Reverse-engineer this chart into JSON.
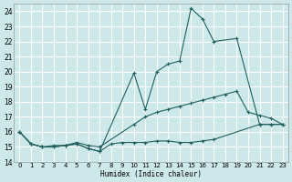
{
  "bg_color": "#cce8e8",
  "grid_color": "#ffffff",
  "line_color": "#206060",
  "xlabel": "Humidex (Indice chaleur)",
  "line1_x": [
    0,
    1,
    2,
    3,
    4,
    5,
    6,
    7,
    8,
    9,
    10,
    11,
    12,
    13,
    14,
    15,
    16,
    17,
    21,
    22,
    23
  ],
  "line1_y": [
    16,
    15.2,
    15.0,
    15.0,
    15.1,
    15.2,
    14.9,
    14.7,
    15.2,
    15.3,
    15.3,
    15.3,
    15.4,
    15.4,
    15.3,
    15.3,
    15.4,
    15.5,
    16.5,
    16.5,
    16.5
  ],
  "line2_x": [
    0,
    1,
    2,
    3,
    4,
    5,
    6,
    7,
    10,
    11,
    12,
    13,
    14,
    15,
    16,
    17,
    18,
    19,
    20,
    21,
    22,
    23
  ],
  "line2_y": [
    16,
    15.2,
    15.0,
    15.1,
    15.1,
    15.3,
    15.1,
    15.0,
    16.5,
    17.0,
    17.3,
    17.5,
    17.7,
    17.9,
    18.1,
    18.3,
    18.5,
    18.7,
    17.3,
    17.1,
    16.9,
    16.5
  ],
  "line3_x": [
    0,
    1,
    2,
    3,
    4,
    5,
    6,
    7,
    10,
    11,
    12,
    13,
    14,
    15,
    16,
    17,
    19,
    21,
    22,
    23
  ],
  "line3_y": [
    16,
    15.2,
    15.0,
    15.0,
    15.1,
    15.2,
    14.9,
    14.7,
    19.9,
    17.5,
    20.0,
    20.5,
    20.7,
    24.2,
    23.5,
    22.0,
    22.2,
    16.5,
    16.5,
    16.5
  ],
  "ylim": [
    14,
    24.5
  ],
  "xlim": [
    -0.5,
    23.5
  ],
  "yticks": [
    14,
    15,
    16,
    17,
    18,
    19,
    20,
    21,
    22,
    23,
    24
  ],
  "xticks": [
    0,
    1,
    2,
    3,
    4,
    5,
    6,
    7,
    8,
    9,
    10,
    11,
    12,
    13,
    14,
    15,
    16,
    17,
    18,
    19,
    20,
    21,
    22,
    23
  ]
}
